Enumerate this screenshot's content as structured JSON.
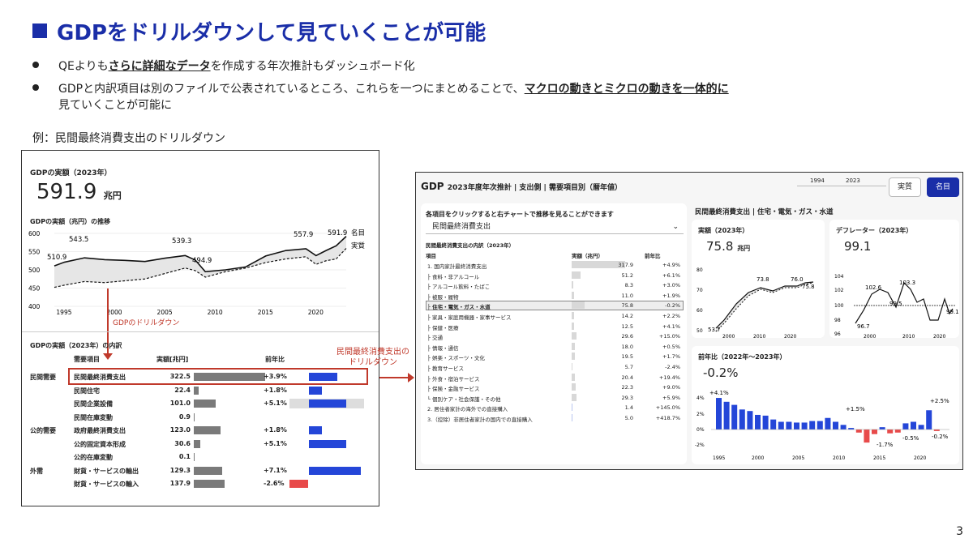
{
  "title": "GDPをドリルダウンして見ていくことが可能",
  "bullets": {
    "b1_pre": "QEよりも",
    "b1_em": "さらに詳細なデータ",
    "b1_post": "を作成する年次推計もダッシュボード化",
    "b2_pre": "GDPと内訳項目は別のファイルで公表されているところ、これらを一つにまとめることで、",
    "b2_em": "マクロの動きとミクロの動きを一体的に",
    "b2_line2": "見ていくことが可能に"
  },
  "example": "例：民間最終消費支出のドリルダウン",
  "left": {
    "gdp_title": "GDPの実額（2023年）",
    "gdp_value": "591.9",
    "gdp_unit": "兆円",
    "trend_title": "GDPの実額（兆円）の推移",
    "yticks": [
      "600",
      "550",
      "500",
      "450",
      "400"
    ],
    "xticks": [
      "1995",
      "2000",
      "2005",
      "2010",
      "2015",
      "2020"
    ],
    "labels": {
      "l1": "510.9",
      "l2": "543.5",
      "l3": "539.3",
      "l4": "494.9",
      "l5": "557.9",
      "l6": "591.9"
    },
    "legend_nominal": "名目",
    "legend_real": "実質",
    "drill_label": "GDPのドリルダウン",
    "breakdown_title": "GDPの実額（2023年）の内訳",
    "col_item": "需要項目",
    "col_value": "実額[兆円]",
    "col_yoy": "前年比",
    "rows": [
      {
        "group": "民間需要",
        "item": "民間最終消費支出",
        "value": "322.5",
        "yoy": "+3.9%",
        "bar": 1.0,
        "pos": 0.55
      },
      {
        "group": "",
        "item": "民間住宅",
        "value": "22.4",
        "yoy": "+1.8%",
        "bar": 0.07,
        "pos": 0.25
      },
      {
        "group": "",
        "item": "民間企業設備",
        "value": "101.0",
        "yoy": "+5.1%",
        "bar": 0.31,
        "pos": 0.72
      },
      {
        "group": "",
        "item": "民間在庫変動",
        "value": "0.9",
        "yoy": "",
        "bar": 0.003,
        "pos": 0
      },
      {
        "group": "公的需要",
        "item": "政府最終消費支出",
        "value": "123.0",
        "yoy": "+1.8%",
        "bar": 0.38,
        "pos": 0.25
      },
      {
        "group": "",
        "item": "公的固定資本形成",
        "value": "30.6",
        "yoy": "+5.1%",
        "bar": 0.09,
        "pos": 0.72
      },
      {
        "group": "",
        "item": "公的在庫変動",
        "value": "0.1",
        "yoy": "",
        "bar": 0.001,
        "pos": 0
      },
      {
        "group": "外需",
        "item": "財貨・サービスの輸出",
        "value": "129.3",
        "yoy": "+7.1%",
        "bar": 0.4,
        "pos": 1.0
      },
      {
        "group": "",
        "item": "財貨・サービスの輸入",
        "value": "137.9",
        "yoy": "-2.6%",
        "bar": 0.43,
        "pos": -0.36
      }
    ]
  },
  "arrow_label_1": "民間最終消費支出の",
  "arrow_label_2": "ドリルダウン",
  "right": {
    "header": "GDP",
    "header_sub": "2023年度年次推計 | 支出側 | 需要項目別（暦年値）",
    "year_from": "1994",
    "year_to": "2023",
    "btn_real": "実質",
    "btn_nominal": "名目",
    "instr": "各項目をクリックすると右チャートで推移を見ることができます",
    "dropdown": "民間最終消費支出",
    "table_title": "民間最終消費支出の内訳（2023年）",
    "col_item": "項目",
    "col_value": "実額（兆円）",
    "col_yoy": "前年比",
    "rows": [
      {
        "item": "1. 国内家計最終消費支出",
        "value": "317.9",
        "yoy": "+4.9%",
        "bar": 1.0
      },
      {
        "item": "├ 食料・非アルコール",
        "value": "51.2",
        "yoy": "+6.1%",
        "bar": 0.16
      },
      {
        "item": "├ アルコール飲料・たばこ",
        "value": "8.3",
        "yoy": "+3.0%",
        "bar": 0.03
      },
      {
        "item": "├ 被服・履物",
        "value": "11.0",
        "yoy": "+1.9%",
        "bar": 0.04
      },
      {
        "item": "├ 住宅・電気・ガス・水道",
        "value": "75.8",
        "yoy": "-0.2%",
        "bar": 0.24
      },
      {
        "item": "├ 家具・家庭用機器・家事サービス",
        "value": "14.2",
        "yoy": "+2.2%",
        "bar": 0.05
      },
      {
        "item": "├ 保健・医療",
        "value": "12.5",
        "yoy": "+4.1%",
        "bar": 0.04
      },
      {
        "item": "├ 交通",
        "value": "29.6",
        "yoy": "+15.0%",
        "bar": 0.09
      },
      {
        "item": "├ 情報・通信",
        "value": "18.0",
        "yoy": "+0.5%",
        "bar": 0.06
      },
      {
        "item": "├ 娯楽・スポーツ・文化",
        "value": "19.5",
        "yoy": "+1.7%",
        "bar": 0.06
      },
      {
        "item": "├ 教育サービス",
        "value": "5.7",
        "yoy": "-2.4%",
        "bar": 0.02
      },
      {
        "item": "├ 外食・宿泊サービス",
        "value": "20.4",
        "yoy": "+19.4%",
        "bar": 0.06
      },
      {
        "item": "├ 保険・金融サービス",
        "value": "22.3",
        "yoy": "+9.0%",
        "bar": 0.07
      },
      {
        "item": "└ 個別ケア・社会保護・その他",
        "value": "29.3",
        "yoy": "+5.9%",
        "bar": 0.09
      },
      {
        "item": "2. 居住者家計の海外での直接購入",
        "value": "1.4",
        "yoy": "+145.0%",
        "bar": 0.005
      },
      {
        "item": "3.（控除）非居住者家計の国内での直接購入",
        "value": "5.0",
        "yoy": "+418.7%",
        "bar": 0.016
      }
    ],
    "selected_title": "民間最終消費支出 | 住宅・電気・ガス・水道",
    "real_title": "実額（2023年）",
    "real_value": "75.8",
    "real_unit": "兆円",
    "real_yticks": [
      "80",
      "70",
      "60",
      "50"
    ],
    "real_xticks": [
      "2000",
      "2010",
      "2020"
    ],
    "real_labels": {
      "a": "53.7",
      "b": "73.8",
      "c": "76.0",
      "d": "75.8"
    },
    "defl_title": "デフレーター（2023年）",
    "defl_value": "99.1",
    "defl_yticks": [
      "104",
      "102",
      "100",
      "98",
      "96"
    ],
    "defl_xticks": [
      "2000",
      "2010",
      "2020"
    ],
    "defl_labels": {
      "a": "102.6",
      "b": "103.3",
      "c": "99.5",
      "d": "96.7",
      "e": "99.1"
    },
    "yoy_title": "前年比（2022年〜2023年）",
    "yoy_value": "-0.2%",
    "yoy_yticks": [
      "4%",
      "2%",
      "0%",
      "-2%"
    ],
    "yoy_xticks": [
      "1995",
      "2000",
      "2005",
      "2010",
      "2015",
      "2020"
    ],
    "yoy_labels": {
      "a": "+4.1%",
      "b": "+1.5%",
      "c": "-1.7%",
      "d": "-0.5%",
      "e": "+2.5%",
      "f": "-0.2%"
    }
  },
  "page_num": "3",
  "chart_data": [
    {
      "type": "line",
      "title": "GDPの実額（兆円）の推移",
      "x": [
        1994,
        1995,
        1997,
        1999,
        2001,
        2003,
        2005,
        2007,
        2008,
        2009,
        2011,
        2013,
        2015,
        2017,
        2019,
        2020,
        2021,
        2022,
        2023
      ],
      "series": [
        {
          "name": "名目",
          "values": [
            510.9,
            521,
            533,
            528,
            526,
            523,
            532,
            539.3,
            527,
            494.9,
            500,
            508,
            538,
            553,
            557.9,
            539,
            553,
            566,
            591.9
          ]
        },
        {
          "name": "実質",
          "values": [
            452,
            458,
            468,
            465,
            470,
            475,
            490,
            505,
            498,
            480,
            495,
            505,
            520,
            530,
            536,
            515,
            525,
            530,
            559
          ]
        }
      ],
      "ylim": [
        400,
        600
      ]
    },
    {
      "type": "bar",
      "title": "前年比（2022年〜2023年）",
      "x": [
        1995,
        1996,
        1997,
        1998,
        1999,
        2000,
        2001,
        2002,
        2003,
        2004,
        2005,
        2006,
        2007,
        2008,
        2009,
        2010,
        2011,
        2012,
        2013,
        2014,
        2015,
        2016,
        2017,
        2018,
        2019,
        2020,
        2021,
        2022,
        2023
      ],
      "values": [
        4.1,
        3.6,
        3.2,
        2.6,
        2.4,
        1.9,
        1.8,
        1.3,
        1.0,
        1.0,
        0.9,
        0.9,
        1.1,
        1.1,
        1.5,
        1.0,
        0.6,
        0.2,
        -0.4,
        -1.7,
        -0.6,
        0.3,
        -0.5,
        -0.4,
        0.8,
        1.0,
        0.6,
        2.5,
        -0.2
      ],
      "ylim": [
        -2,
        4
      ]
    }
  ]
}
